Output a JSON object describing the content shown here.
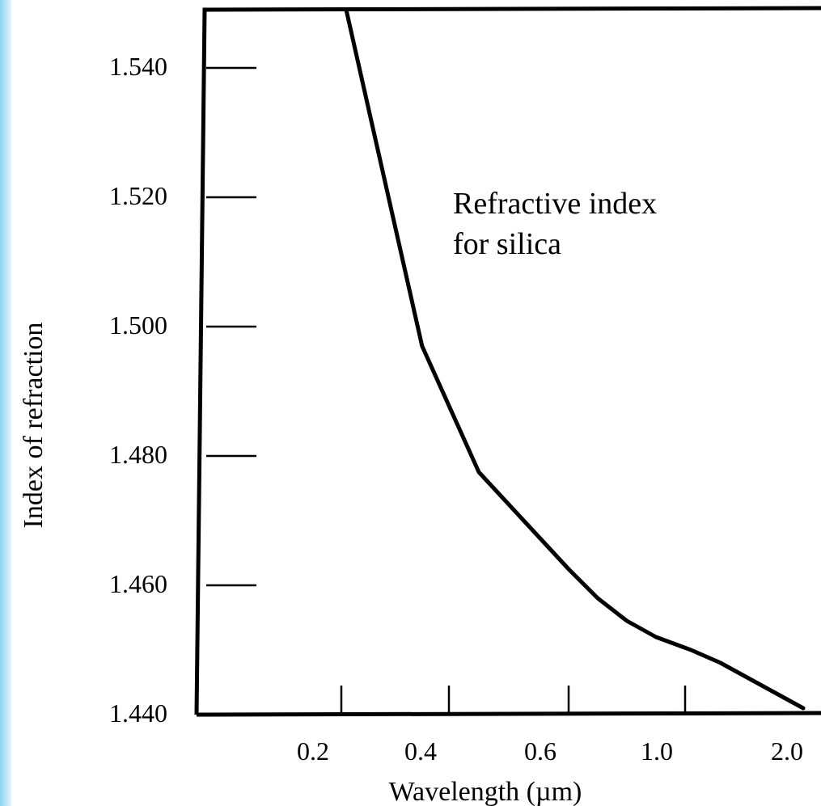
{
  "chart_data": {
    "type": "line",
    "title": "",
    "xlabel": "Wavelength (µm)",
    "ylabel": "Index of refraction",
    "x_ticks": [
      "0.2",
      "0.4",
      "0.6",
      "1.0",
      "2.0"
    ],
    "y_ticks": [
      "1.540",
      "1.520",
      "1.500",
      "1.480",
      "1.460",
      "1.440"
    ],
    "ylim": [
      1.44,
      1.55
    ],
    "grid": false,
    "annotation": [
      "Refractive index",
      "for silica"
    ],
    "series": [
      {
        "x": [
          0.2,
          0.35,
          0.45,
          0.55,
          0.6,
          0.7,
          0.8,
          0.9,
          1.05,
          1.3,
          1.5,
          2.0
        ],
        "y": [
          1.551,
          1.497,
          1.4775,
          1.4675,
          1.4625,
          1.458,
          1.4545,
          1.452,
          1.45,
          1.448,
          1.446,
          1.441
        ]
      }
    ]
  }
}
